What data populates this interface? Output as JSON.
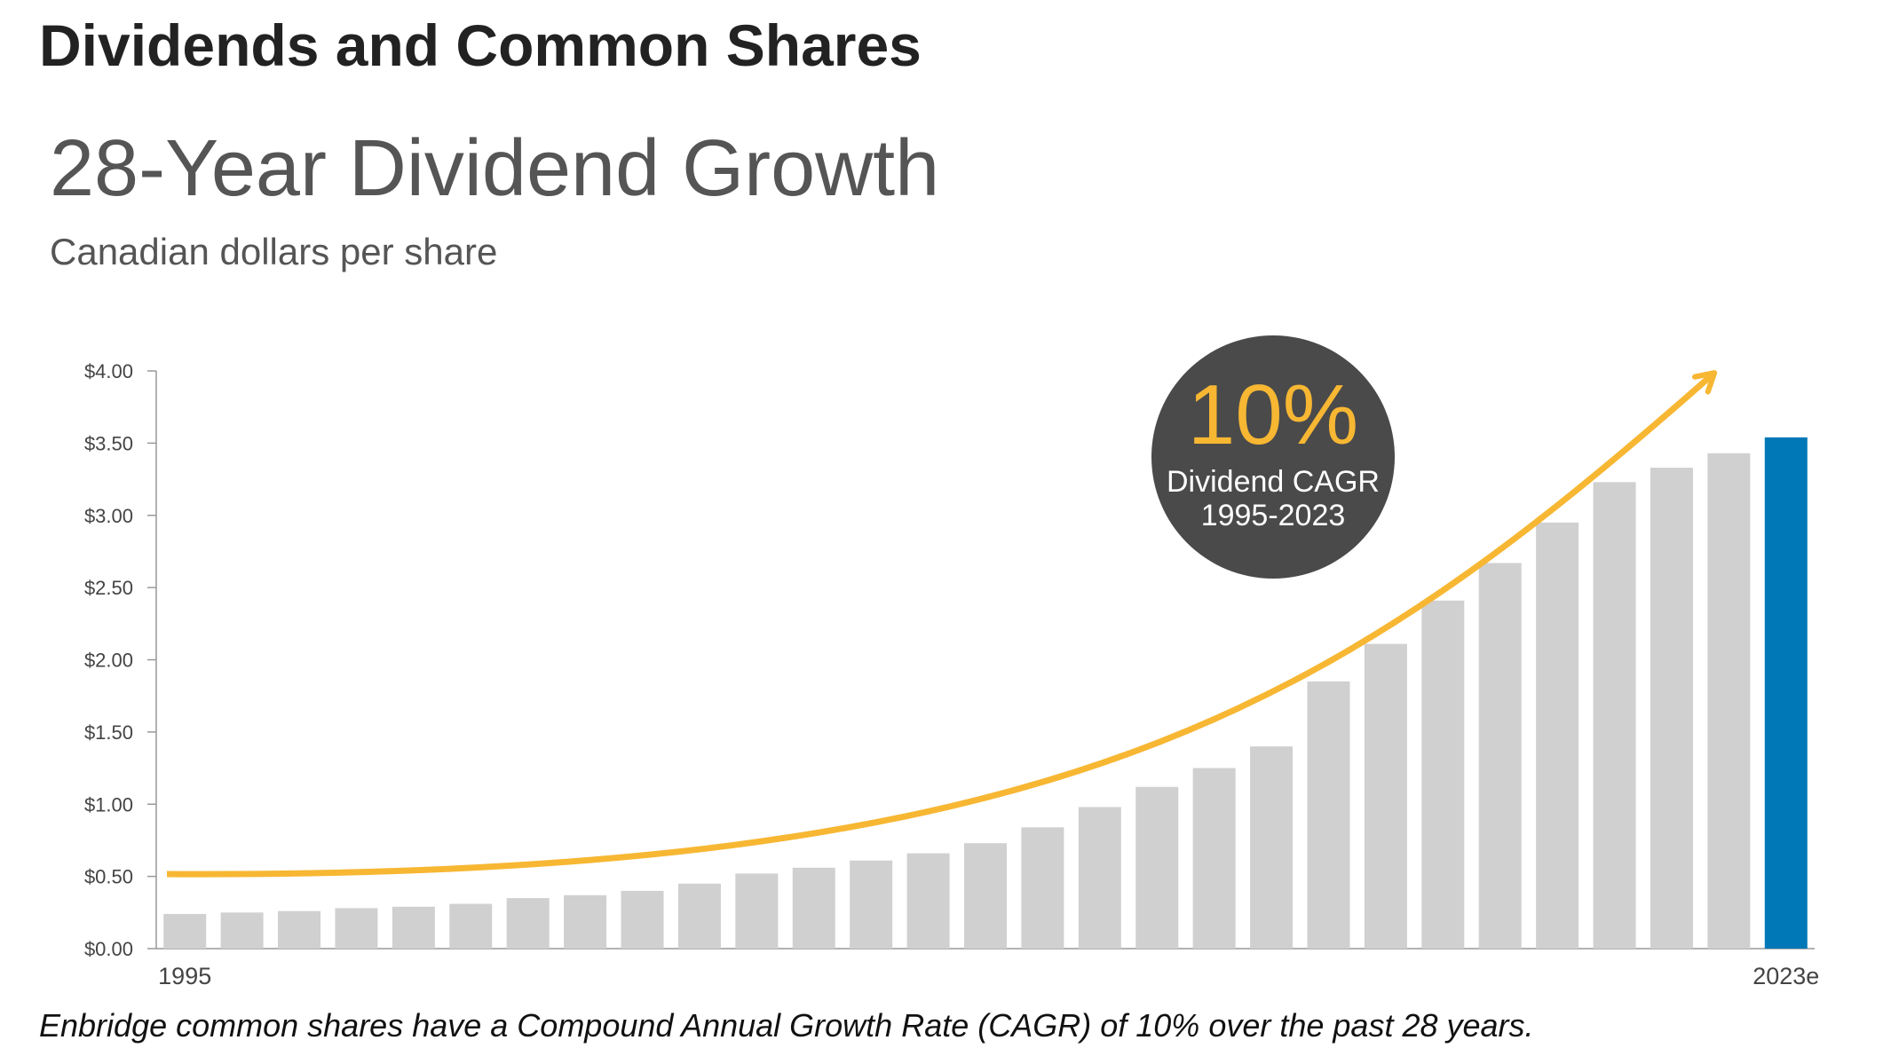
{
  "heading": "Dividends and Common Shares",
  "caption": "Enbridge common shares have a Compound Annual Growth Rate (CAGR) of 10% over the past 28 years.",
  "chart_data": {
    "type": "bar",
    "title": "28-Year Dividend Growth",
    "subtitle": "Canadian dollars per share",
    "annotation": {
      "value": "10%",
      "lines": [
        "Dividend CAGR",
        "1995-2023"
      ]
    },
    "categories": [
      "1995",
      null,
      null,
      null,
      null,
      null,
      null,
      null,
      null,
      null,
      null,
      null,
      null,
      null,
      null,
      null,
      null,
      null,
      null,
      null,
      null,
      null,
      null,
      null,
      null,
      null,
      null,
      null,
      "2023e"
    ],
    "values": [
      0.24,
      0.25,
      0.26,
      0.28,
      0.29,
      0.31,
      0.35,
      0.37,
      0.4,
      0.45,
      0.52,
      0.56,
      0.61,
      0.66,
      0.73,
      0.84,
      0.98,
      1.12,
      1.25,
      1.4,
      1.85,
      2.11,
      2.41,
      2.67,
      2.95,
      3.23,
      3.33,
      3.43,
      3.54
    ],
    "colors": [
      "#d0d0d0",
      "#d0d0d0",
      "#d0d0d0",
      "#d0d0d0",
      "#d0d0d0",
      "#d0d0d0",
      "#d0d0d0",
      "#d0d0d0",
      "#d0d0d0",
      "#d0d0d0",
      "#d0d0d0",
      "#d0d0d0",
      "#d0d0d0",
      "#d0d0d0",
      "#d0d0d0",
      "#d0d0d0",
      "#d0d0d0",
      "#d0d0d0",
      "#d0d0d0",
      "#d0d0d0",
      "#d0d0d0",
      "#d0d0d0",
      "#d0d0d0",
      "#d0d0d0",
      "#d0d0d0",
      "#d0d0d0",
      "#d0d0d0",
      "#d0d0d0",
      "#0077b6"
    ],
    "ylim": [
      0,
      4
    ],
    "yticks": [
      {
        "value": 0,
        "label": "$0.00"
      },
      {
        "value": 0.5,
        "label": "$0.50"
      },
      {
        "value": 1,
        "label": "$1.00"
      },
      {
        "value": 1.5,
        "label": "$1.50"
      },
      {
        "value": 2,
        "label": "$2.00"
      },
      {
        "value": 2.5,
        "label": "$2.50"
      },
      {
        "value": 3,
        "label": "$3.00"
      },
      {
        "value": 3.5,
        "label": "$3.50"
      },
      {
        "value": 4,
        "label": "$4.00"
      }
    ],
    "grid": false
  }
}
